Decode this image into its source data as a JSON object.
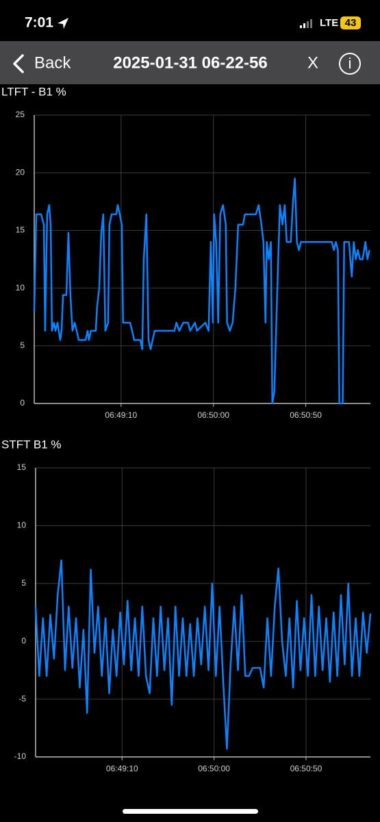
{
  "status_bar": {
    "time": "7:01",
    "network": "LTE",
    "battery": "43"
  },
  "nav": {
    "back": "Back",
    "title": "2025-01-31 06-22-56",
    "close": "X",
    "info": "i"
  },
  "chart_data": [
    {
      "type": "line",
      "title": "LTFT - B1 %",
      "color": "#0a84ff",
      "grid": true,
      "xlim": [
        24503,
        24685
      ],
      "ylim": [
        0,
        25
      ],
      "yticks": [
        0,
        5,
        10,
        15,
        20,
        25
      ],
      "xticks": [
        {
          "value": 24550,
          "label": "06:49:10"
        },
        {
          "value": 24600,
          "label": "06:50:00"
        },
        {
          "value": 24650,
          "label": "06:50:50"
        }
      ],
      "x": [
        24503,
        24504.1,
        24506.7,
        24508.2,
        24508.9,
        24510,
        24511.1,
        24511.9,
        24512.6,
        24513.7,
        24514.5,
        24515.6,
        24516.3,
        24517.1,
        24517.8,
        24518.6,
        24520.4,
        24521.5,
        24522.6,
        24523.7,
        24524.9,
        24526,
        24527.1,
        24530.8,
        24531.9,
        24532.6,
        24533.7,
        24536.3,
        24537.1,
        24538.2,
        24539.3,
        24540.4,
        24541.5,
        24543,
        24543.7,
        24544.9,
        24547.4,
        24548.2,
        24549.3,
        24550.4,
        24551.1,
        24554.9,
        24556,
        24557.1,
        24560.4,
        24561.5,
        24562.3,
        24563.7,
        24564.9,
        24566,
        24567.1,
        24568.2,
        24578.9,
        24580,
        24581.5,
        24583.7,
        24586.3,
        24587.4,
        24590,
        24591.1,
        24595.6,
        24597.4,
        24598.6,
        24599.7,
        24600.4,
        24601.5,
        24602.6,
        24603.7,
        24605.2,
        24606.7,
        24607.4,
        24608.9,
        24610.4,
        24611.9,
        24613.4,
        24616,
        24617.1,
        24623,
        24624.5,
        24626,
        24627.1,
        24628.2,
        24628.9,
        24630,
        24631.1,
        24631.9,
        24633,
        24634.5,
        24636,
        24637.4,
        24638.6,
        24639.7,
        24641.9,
        24643,
        24644.1,
        24645.2,
        24646.3,
        24647.4,
        24664.1,
        24665.2,
        24666.3,
        24667.4,
        24668.2,
        24670,
        24670.8,
        24673.4,
        24674.9,
        24676,
        24677.1,
        24678.2,
        24679.3,
        24680.8,
        24682.3,
        24683.4,
        24684.5
      ],
      "values": [
        8,
        16.4,
        16.4,
        15.5,
        6.3,
        16.4,
        17.2,
        15.5,
        6.3,
        7,
        6.3,
        7,
        6.3,
        5.5,
        6.3,
        9.4,
        9.4,
        14.8,
        9.4,
        6.3,
        7,
        6.3,
        5.5,
        5.5,
        6.3,
        5.5,
        6.3,
        6.3,
        8.5,
        10,
        14.8,
        16.4,
        6.3,
        7,
        15.5,
        16.4,
        16.4,
        17.2,
        16.4,
        15.5,
        7,
        7,
        6.3,
        5.5,
        5.5,
        4.7,
        12.5,
        16.4,
        5.5,
        4.7,
        5.5,
        6.3,
        6.3,
        7,
        6.3,
        7,
        7,
        6.3,
        7,
        6.3,
        7,
        6.3,
        14,
        7,
        16.4,
        14,
        7,
        16.4,
        17.2,
        15.5,
        7,
        6.3,
        7,
        10,
        15.5,
        15.5,
        16.4,
        16.4,
        17.2,
        15.5,
        14,
        7,
        14,
        12.5,
        14,
        0,
        1,
        9.4,
        17.2,
        15.5,
        17.2,
        14,
        14,
        17.2,
        19.5,
        14,
        13.3,
        14,
        14,
        13.3,
        14,
        13.3,
        0,
        0,
        14,
        14,
        11,
        14,
        12.5,
        13.3,
        12.5,
        12.5,
        14,
        12.5,
        13.3
      ]
    },
    {
      "type": "line",
      "title": "STFT B1 %",
      "color": "#0a84ff",
      "grid": true,
      "xlim": [
        24503,
        24685
      ],
      "ylim": [
        -10,
        15
      ],
      "yticks": [
        -10,
        -5,
        0,
        5,
        10,
        15
      ],
      "xticks": [
        {
          "value": 24550,
          "label": "06:49:10"
        },
        {
          "value": 24600,
          "label": "06:50:00"
        },
        {
          "value": 24650,
          "label": "06:50:50"
        }
      ],
      "x": [
        24503,
        24505,
        24507,
        24509,
        24511,
        24513,
        24515,
        24517,
        24519,
        24521,
        24523,
        24525,
        24527,
        24529,
        24531,
        24533,
        24535,
        24537,
        24539,
        24541,
        24543,
        24545,
        24547,
        24549,
        24551,
        24553,
        24555,
        24557,
        24559,
        24561,
        24563,
        24565,
        24567,
        24569,
        24571,
        24573,
        24575,
        24577,
        24579,
        24581,
        24583,
        24585,
        24587,
        24589,
        24591,
        24593,
        24595,
        24597,
        24599,
        24601,
        24603,
        24605,
        24607,
        24609,
        24611,
        24613,
        24615,
        24617,
        24619,
        24621,
        24623,
        24625,
        24627,
        24629,
        24631,
        24633,
        24635,
        24637,
        24639,
        24641,
        24643,
        24645,
        24647,
        24649,
        24651,
        24653,
        24655,
        24657,
        24659,
        24661,
        24663,
        24665,
        24667,
        24669,
        24671,
        24673,
        24675,
        24677,
        24679,
        24681,
        24683,
        24685
      ],
      "values": [
        3,
        -3,
        2,
        -3,
        2.3,
        -1.5,
        4,
        7,
        -2.5,
        3,
        -2.3,
        2,
        -4,
        1,
        -6.2,
        6.2,
        -1,
        3,
        -3,
        2,
        -4.5,
        1,
        -3,
        2.5,
        -2,
        3.5,
        -2.5,
        2,
        -3,
        3,
        -3,
        -4.5,
        2,
        -3,
        3,
        -2.5,
        2,
        -5.5,
        3,
        -3,
        2,
        -3,
        1.5,
        -3,
        2,
        -2,
        3,
        -2.5,
        5,
        -3,
        3,
        -3.5,
        -9.3,
        -2,
        3,
        -2.5,
        4,
        -3,
        -3,
        -2.3,
        -2.3,
        -2.3,
        -4,
        2,
        -3,
        3,
        6.3,
        0,
        -3,
        2,
        -4,
        3.5,
        -2.5,
        2,
        -3,
        4,
        -3,
        3,
        -2.5,
        2,
        -3.5,
        2.5,
        -3,
        4,
        -2,
        5,
        -3,
        2,
        -3,
        2.5,
        -1,
        2.4
      ]
    }
  ]
}
